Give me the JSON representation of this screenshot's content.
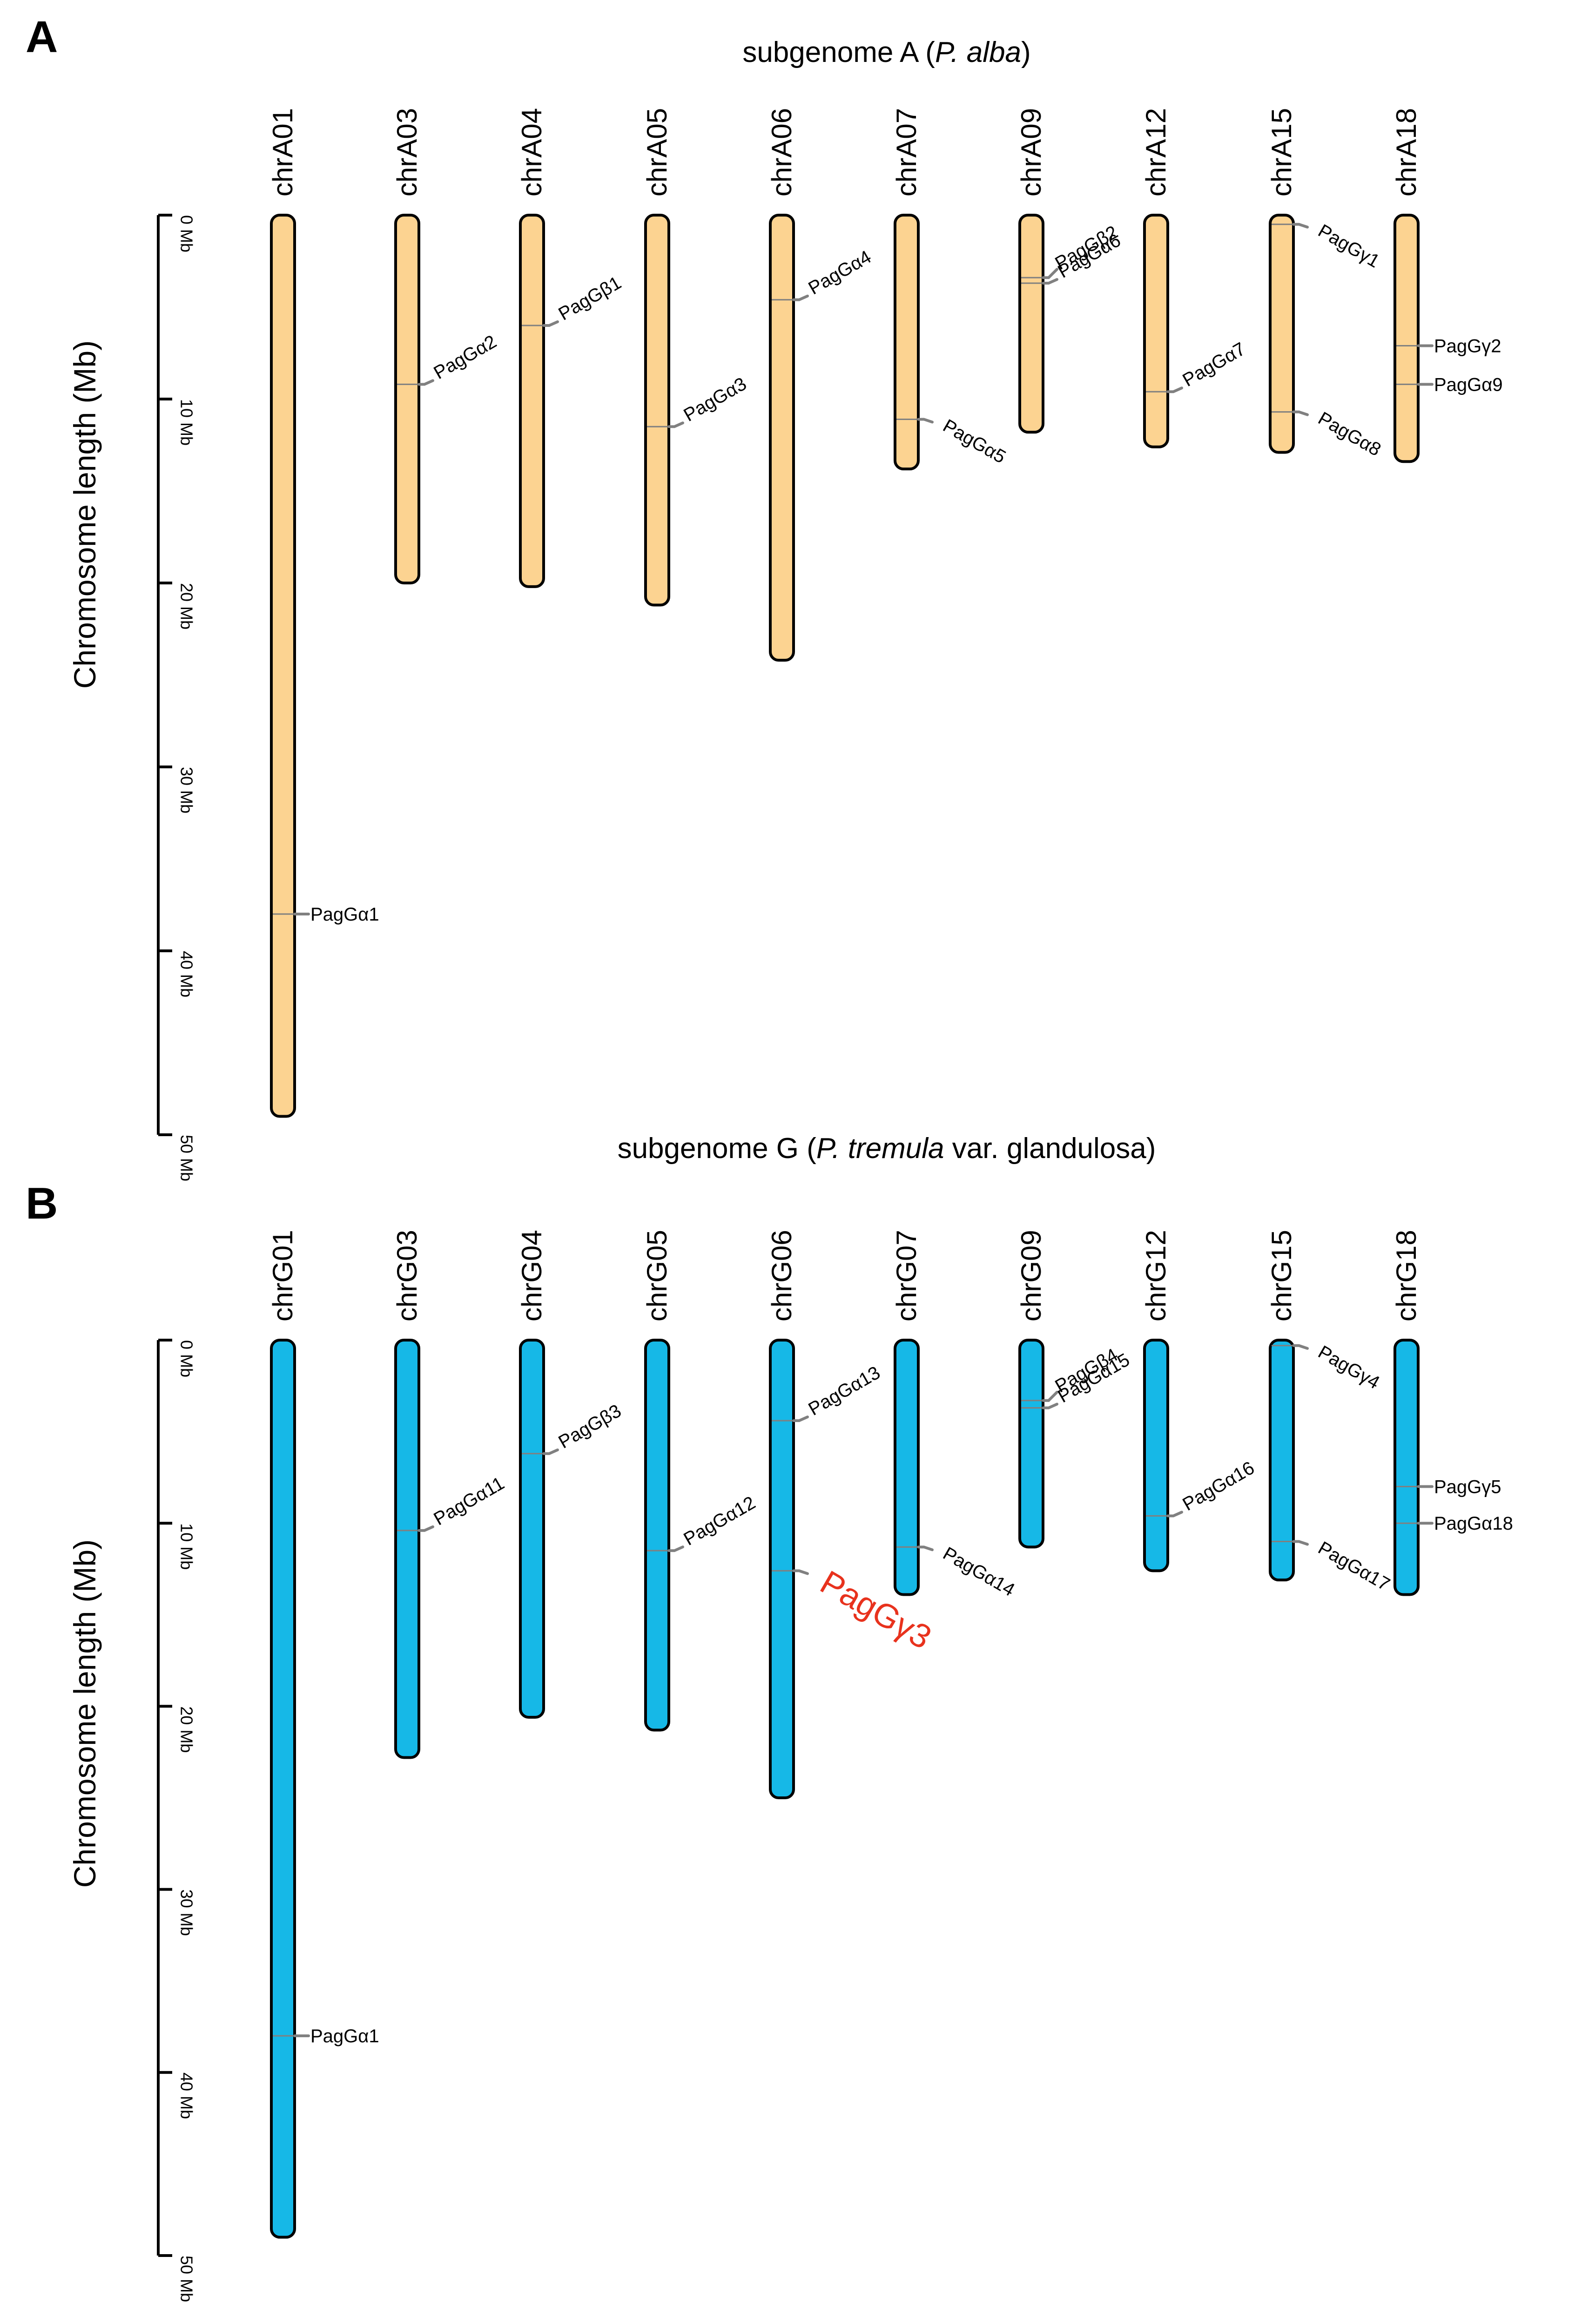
{
  "colors": {
    "subgenome_a": "#fcd391",
    "subgenome_g": "#16b8e7",
    "highlight": "#e8321d",
    "marker": "#808080"
  },
  "panels": [
    {
      "letter": "A",
      "title_prefix": "subgenome A (",
      "title_italic": "P. alba",
      "title_suffix": ")",
      "axis_title": "Chromosome length (Mb)",
      "axis_max": 50,
      "ticks": [
        "0 Mb",
        "10 Mb",
        "20 Mb",
        "30 Mb",
        "40 Mb",
        "50 Mb"
      ],
      "chromosomes": [
        {
          "name": "chrA01",
          "length": 49,
          "genes": [
            {
              "name": "PagGα1",
              "pos": 38,
              "style": "flat"
            }
          ]
        },
        {
          "name": "chrA03",
          "length": 20,
          "genes": [
            {
              "name": "PagGα2",
              "pos": 9.2,
              "style": "diag"
            }
          ]
        },
        {
          "name": "chrA04",
          "length": 20.2,
          "genes": [
            {
              "name": "PagGβ1",
              "pos": 6,
              "style": "diag"
            }
          ]
        },
        {
          "name": "chrA05",
          "length": 21.2,
          "genes": [
            {
              "name": "PagGα3",
              "pos": 11.5,
              "style": "diag"
            }
          ]
        },
        {
          "name": "chrA06",
          "length": 24.2,
          "genes": [
            {
              "name": "PagGα4",
              "pos": 4.6,
              "style": "diag"
            }
          ]
        },
        {
          "name": "chrA07",
          "length": 13.8,
          "genes": [
            {
              "name": "PagGα5",
              "pos": 11.1,
              "style": "diagdown"
            }
          ]
        },
        {
          "name": "chrA09",
          "length": 11.8,
          "genes": [
            {
              "name": "PagGβ2",
              "pos": 3.4,
              "style": "diagup"
            },
            {
              "name": "PagGα6",
              "pos": 3.7,
              "style": "diag"
            }
          ]
        },
        {
          "name": "chrA12",
          "length": 12.6,
          "genes": [
            {
              "name": "PagGα7",
              "pos": 9.6,
              "style": "diag"
            }
          ]
        },
        {
          "name": "chrA15",
          "length": 12.9,
          "genes": [
            {
              "name": "PagGγ1",
              "pos": 0.5,
              "style": "diagdown"
            },
            {
              "name": "PagGα8",
              "pos": 10.7,
              "style": "diagdown"
            }
          ]
        },
        {
          "name": "chrA18",
          "length": 13.4,
          "genes": [
            {
              "name": "PagGγ2",
              "pos": 7.1,
              "style": "flat"
            },
            {
              "name": "PagGα9",
              "pos": 9.2,
              "style": "flat"
            }
          ]
        }
      ]
    },
    {
      "letter": "B",
      "title_prefix": "subgenome G (",
      "title_italic": "P. tremula",
      "title_suffix": " var. glandulosa)",
      "axis_title": "Chromosome length (Mb)",
      "axis_max": 50,
      "ticks": [
        "0 Mb",
        "10 Mb",
        "20 Mb",
        "30 Mb",
        "40 Mb",
        "50 Mb"
      ],
      "chromosomes": [
        {
          "name": "chrG01",
          "length": 49,
          "genes": [
            {
              "name": "PagGα1",
              "pos": 38,
              "style": "flat"
            }
          ]
        },
        {
          "name": "chrG03",
          "length": 22.8,
          "genes": [
            {
              "name": "PagGα11",
              "pos": 10.4,
              "style": "diag"
            }
          ]
        },
        {
          "name": "chrG04",
          "length": 20.6,
          "genes": [
            {
              "name": "PagGβ3",
              "pos": 6.2,
              "style": "diag"
            }
          ]
        },
        {
          "name": "chrG05",
          "length": 21.3,
          "genes": [
            {
              "name": "PagGα12",
              "pos": 11.5,
              "style": "diag"
            }
          ]
        },
        {
          "name": "chrG06",
          "length": 25,
          "genes": [
            {
              "name": "PagGα13",
              "pos": 4.4,
              "style": "diag"
            },
            {
              "name": "PagGγ3",
              "pos": 12.6,
              "style": "big"
            }
          ]
        },
        {
          "name": "chrG07",
          "length": 13.9,
          "genes": [
            {
              "name": "PagGα14",
              "pos": 11.3,
              "style": "diagdown"
            }
          ]
        },
        {
          "name": "chrG09",
          "length": 11.3,
          "genes": [
            {
              "name": "PagGβ4",
              "pos": 3.3,
              "style": "diagup"
            },
            {
              "name": "PagGα15",
              "pos": 3.7,
              "style": "diag"
            }
          ]
        },
        {
          "name": "chrG12",
          "length": 12.6,
          "genes": [
            {
              "name": "PagGα16",
              "pos": 9.6,
              "style": "diag"
            }
          ]
        },
        {
          "name": "chrG15",
          "length": 13.1,
          "genes": [
            {
              "name": "PagGγ4",
              "pos": 0.3,
              "style": "diagdown"
            },
            {
              "name": "PagGα17",
              "pos": 11,
              "style": "diagdown"
            }
          ]
        },
        {
          "name": "chrG18",
          "length": 13.9,
          "genes": [
            {
              "name": "PagGγ5",
              "pos": 8,
              "style": "flat"
            },
            {
              "name": "PagGα18",
              "pos": 10,
              "style": "flat"
            }
          ]
        }
      ]
    }
  ]
}
